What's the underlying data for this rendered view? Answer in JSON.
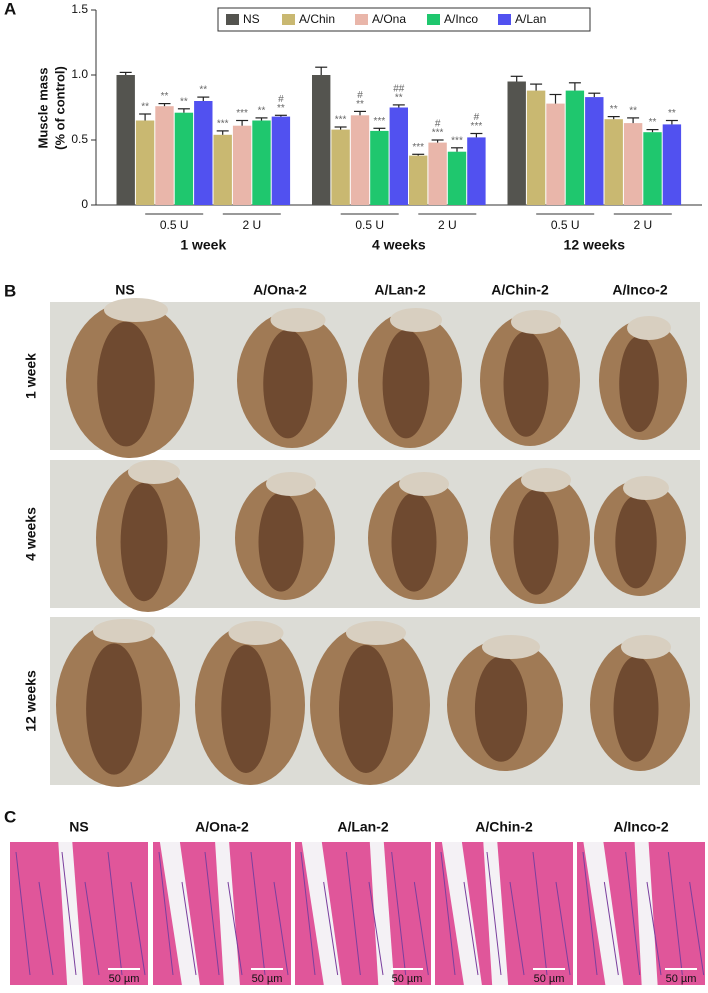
{
  "panel_labels": [
    "A",
    "B",
    "C"
  ],
  "chart_data": {
    "type": "bar",
    "y_label": [
      "Muscle mass",
      "(% of control)"
    ],
    "groups": [
      "1 week",
      "4 weeks",
      "12 weeks"
    ],
    "doses": [
      "0.5 U",
      "2 U"
    ],
    "ylim": [
      0,
      1.5
    ],
    "yticks": [
      0,
      0.5,
      {
        "value": 1.0,
        "label": "1.0"
      },
      1.5
    ],
    "series": [
      {
        "name": "NS",
        "color": "#54544f",
        "values": [
          1.0,
          1.0,
          0.95
        ],
        "errors": [
          0.02,
          0.06,
          0.04
        ],
        "annotations": [
          null,
          null,
          null
        ]
      },
      {
        "name": "A/Chin",
        "color": "#c9b871",
        "values": [
          0.65,
          0.54,
          0.58,
          0.38,
          0.88,
          0.66
        ],
        "errors": [
          0.05,
          0.03,
          0.02,
          0.01,
          0.05,
          0.02
        ],
        "annotations": [
          [
            "**"
          ],
          [
            "***"
          ],
          [
            "***"
          ],
          [
            "***"
          ],
          null,
          [
            "**"
          ]
        ]
      },
      {
        "name": "A/Ona",
        "color": "#e9b6aa",
        "values": [
          0.76,
          0.61,
          0.69,
          0.48,
          0.78,
          0.63
        ],
        "errors": [
          0.02,
          0.04,
          0.03,
          0.02,
          0.07,
          0.04
        ],
        "annotations": [
          [
            "**"
          ],
          [
            "***"
          ],
          [
            "#",
            "**"
          ],
          [
            "#",
            "***"
          ],
          null,
          [
            "**"
          ]
        ]
      },
      {
        "name": "A/Inco",
        "color": "#1fc76e",
        "values": [
          0.71,
          0.65,
          0.57,
          0.41,
          0.88,
          0.56
        ],
        "errors": [
          0.03,
          0.02,
          0.02,
          0.03,
          0.06,
          0.02
        ],
        "annotations": [
          [
            "**"
          ],
          [
            "**"
          ],
          [
            "***"
          ],
          [
            "***"
          ],
          null,
          [
            "**"
          ]
        ]
      },
      {
        "name": "A/Lan",
        "color": "#5151f0",
        "values": [
          0.8,
          0.68,
          0.75,
          0.52,
          0.83,
          0.62
        ],
        "errors": [
          0.03,
          0.01,
          0.02,
          0.03,
          0.03,
          0.03
        ],
        "annotations": [
          [
            "**"
          ],
          [
            "#",
            "**"
          ],
          [
            "##",
            "**"
          ],
          [
            "#",
            "***"
          ],
          null,
          [
            "**"
          ]
        ]
      }
    ]
  },
  "photos": {
    "columns": [
      "NS",
      "A/Ona-2",
      "A/Lan-2",
      "A/Chin-2",
      "A/Inco-2"
    ],
    "rows": [
      "1 week",
      "4 weeks",
      "12 weeks"
    ]
  },
  "histology": {
    "columns": [
      "NS",
      "A/Ona-2",
      "A/Lan-2",
      "A/Chin-2",
      "A/Inco-2"
    ],
    "scale_bar": "50 µm"
  }
}
